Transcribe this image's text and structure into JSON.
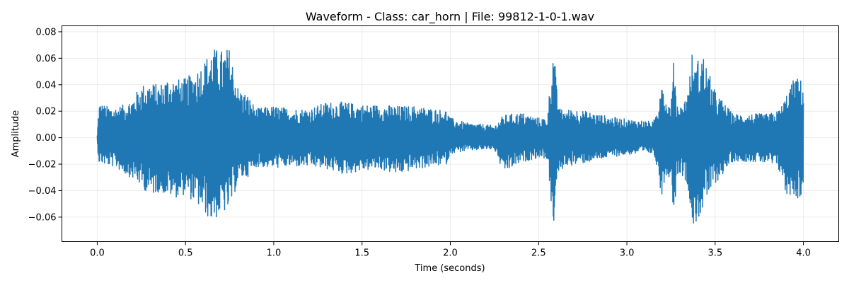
{
  "chart_data": {
    "type": "line",
    "title": "Waveform - Class: car_horn | File: 99812-1-0-1.wav",
    "xlabel": "Time (seconds)",
    "ylabel": "Amplitude",
    "xlim": [
      -0.2,
      4.2
    ],
    "ylim": [
      -0.0785,
      0.0845
    ],
    "x_ticks": [
      0.0,
      0.5,
      1.0,
      1.5,
      2.0,
      2.5,
      3.0,
      3.5,
      4.0
    ],
    "x_tick_labels": [
      "0.0",
      "0.5",
      "1.0",
      "1.5",
      "2.0",
      "2.5",
      "3.0",
      "3.5",
      "4.0"
    ],
    "y_ticks": [
      -0.06,
      -0.04,
      -0.02,
      0.0,
      0.02,
      0.04,
      0.06,
      0.08
    ],
    "y_tick_labels": [
      "−0.06",
      "−0.04",
      "−0.02",
      "0.00",
      "0.02",
      "0.04",
      "0.06",
      "0.08"
    ],
    "grid": true,
    "legend": "none",
    "series": [
      {
        "color": "#1f77b4",
        "envelope": {
          "x": [
            0.0,
            0.01,
            0.05,
            0.1,
            0.15,
            0.2,
            0.25,
            0.3,
            0.35,
            0.4,
            0.45,
            0.5,
            0.55,
            0.6,
            0.65,
            0.7,
            0.75,
            0.8,
            0.85,
            0.9,
            1.0,
            1.1,
            1.2,
            1.3,
            1.4,
            1.5,
            1.6,
            1.7,
            1.8,
            1.9,
            1.98,
            2.0,
            2.05,
            2.1,
            2.2,
            2.25,
            2.3,
            2.4,
            2.5,
            2.55,
            2.57,
            2.58,
            2.59,
            2.6,
            2.62,
            2.65,
            2.7,
            2.8,
            2.9,
            3.0,
            3.1,
            3.15,
            3.18,
            3.19,
            3.2,
            3.22,
            3.25,
            3.26,
            3.27,
            3.28,
            3.3,
            3.32,
            3.35,
            3.37,
            3.38,
            3.4,
            3.43,
            3.45,
            3.5,
            3.6,
            3.7,
            3.8,
            3.85,
            3.88,
            3.9,
            3.93,
            3.95,
            3.98,
            4.0
          ],
          "max": [
            0.002,
            0.027,
            0.024,
            0.023,
            0.025,
            0.03,
            0.04,
            0.042,
            0.04,
            0.046,
            0.044,
            0.045,
            0.05,
            0.057,
            0.068,
            0.066,
            0.068,
            0.037,
            0.033,
            0.022,
            0.024,
            0.022,
            0.022,
            0.027,
            0.027,
            0.025,
            0.025,
            0.024,
            0.024,
            0.022,
            0.021,
            0.015,
            0.013,
            0.011,
            0.01,
            0.009,
            0.017,
            0.019,
            0.015,
            0.015,
            0.05,
            0.066,
            0.065,
            0.04,
            0.022,
            0.021,
            0.022,
            0.019,
            0.016,
            0.014,
            0.013,
            0.012,
            0.025,
            0.05,
            0.048,
            0.028,
            0.025,
            0.047,
            0.068,
            0.028,
            0.024,
            0.025,
            0.04,
            0.065,
            0.05,
            0.059,
            0.064,
            0.055,
            0.035,
            0.018,
            0.018,
            0.018,
            0.02,
            0.025,
            0.032,
            0.04,
            0.046,
            0.045,
            0.04
          ],
          "min": [
            -0.005,
            -0.019,
            -0.021,
            -0.022,
            -0.027,
            -0.031,
            -0.037,
            -0.044,
            -0.041,
            -0.044,
            -0.045,
            -0.043,
            -0.049,
            -0.056,
            -0.064,
            -0.058,
            -0.055,
            -0.032,
            -0.03,
            -0.022,
            -0.023,
            -0.022,
            -0.022,
            -0.024,
            -0.028,
            -0.025,
            -0.024,
            -0.028,
            -0.024,
            -0.022,
            -0.02,
            -0.012,
            -0.011,
            -0.01,
            -0.009,
            -0.009,
            -0.027,
            -0.019,
            -0.015,
            -0.016,
            -0.05,
            -0.066,
            -0.064,
            -0.035,
            -0.027,
            -0.021,
            -0.021,
            -0.018,
            -0.015,
            -0.013,
            -0.012,
            -0.012,
            -0.026,
            -0.045,
            -0.042,
            -0.029,
            -0.03,
            -0.05,
            -0.062,
            -0.03,
            -0.026,
            -0.03,
            -0.04,
            -0.066,
            -0.071,
            -0.062,
            -0.056,
            -0.048,
            -0.035,
            -0.018,
            -0.018,
            -0.02,
            -0.023,
            -0.03,
            -0.045,
            -0.043,
            -0.045,
            -0.047,
            -0.04
          ]
        }
      }
    ]
  }
}
